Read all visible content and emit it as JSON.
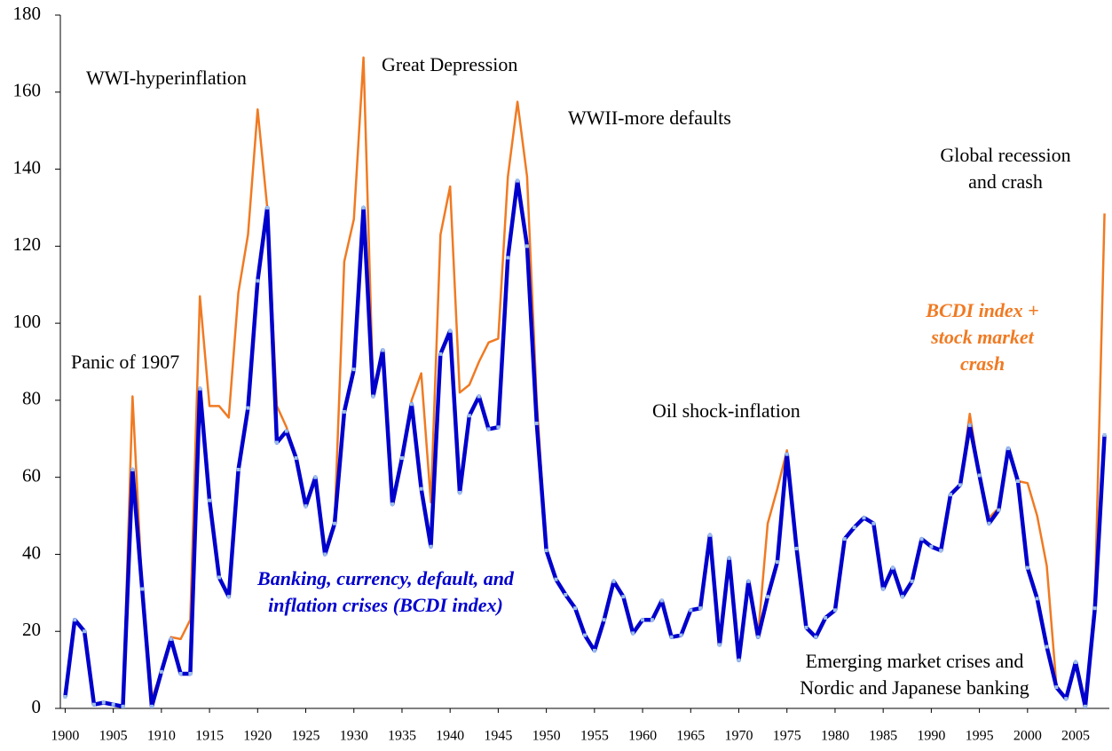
{
  "chart_data": {
    "type": "line",
    "x": [
      1900,
      1901,
      1902,
      1903,
      1904,
      1905,
      1906,
      1907,
      1908,
      1909,
      1910,
      1911,
      1912,
      1913,
      1914,
      1915,
      1916,
      1917,
      1918,
      1919,
      1920,
      1921,
      1922,
      1923,
      1924,
      1925,
      1926,
      1927,
      1928,
      1929,
      1930,
      1931,
      1932,
      1933,
      1934,
      1935,
      1936,
      1937,
      1938,
      1939,
      1940,
      1941,
      1942,
      1943,
      1944,
      1945,
      1946,
      1947,
      1948,
      1949,
      1950,
      1951,
      1952,
      1953,
      1954,
      1955,
      1956,
      1957,
      1958,
      1959,
      1960,
      1961,
      1962,
      1963,
      1964,
      1965,
      1966,
      1967,
      1968,
      1969,
      1970,
      1971,
      1972,
      1973,
      1974,
      1975,
      1976,
      1977,
      1978,
      1979,
      1980,
      1981,
      1982,
      1983,
      1984,
      1985,
      1986,
      1987,
      1988,
      1989,
      1990,
      1991,
      1992,
      1993,
      1994,
      1995,
      1996,
      1997,
      1998,
      1999,
      2000,
      2001,
      2002,
      2003,
      2004,
      2005,
      2006,
      2007,
      2008
    ],
    "series": [
      {
        "name": "BCDI index + stock market crash",
        "color": "#f07a22",
        "values": [
          3,
          23,
          20,
          1,
          1.5,
          1,
          0.5,
          81,
          31,
          2.5,
          9.5,
          18.5,
          18,
          23,
          107,
          78.5,
          78.5,
          75.5,
          108,
          123,
          155.5,
          130,
          78.5,
          73,
          65,
          52.5,
          60,
          41,
          48.5,
          116,
          127,
          169,
          83,
          93,
          54,
          65,
          80,
          87,
          53.5,
          123,
          135.5,
          82,
          84,
          90,
          95,
          96,
          138,
          157.5,
          138,
          80,
          41,
          33.5,
          29.5,
          26,
          19,
          15,
          23,
          33,
          29,
          19.5,
          23,
          23,
          28,
          18.5,
          19,
          25.5,
          26,
          45,
          16.5,
          39,
          12.5,
          33,
          19,
          48,
          57,
          67,
          41.5,
          21,
          18.5,
          23.5,
          25.5,
          44,
          47,
          49.5,
          48,
          31,
          36.5,
          29,
          33,
          44,
          42,
          41,
          55.5,
          58,
          76.5,
          60.5,
          49.5,
          52,
          67.5,
          59,
          58.5,
          50,
          37,
          6,
          2.5,
          12,
          1,
          28,
          128.5
        ]
      },
      {
        "name": "Banking, currency, default, and inflation crises (BCDI index)",
        "color": "#0000cc",
        "values": [
          3,
          23,
          20,
          1,
          1.5,
          1,
          0.5,
          62,
          31,
          0.5,
          9.5,
          18,
          9,
          9,
          83,
          54,
          34,
          29,
          62,
          78,
          111,
          130,
          69,
          72,
          65,
          52.5,
          60,
          40,
          48,
          77,
          88,
          130,
          81,
          93,
          53,
          65,
          79,
          57,
          42,
          92,
          98,
          56,
          76,
          81,
          72.5,
          73,
          117,
          137,
          120,
          74,
          41,
          33.5,
          29.5,
          26,
          19,
          15,
          23,
          33,
          29,
          19.5,
          23,
          23,
          28,
          18.5,
          19,
          25.5,
          26,
          45,
          16.5,
          39,
          12.5,
          33,
          18.5,
          29,
          38,
          66,
          41.5,
          21,
          18.5,
          23.5,
          25.5,
          44,
          47,
          49.5,
          48,
          31,
          36.5,
          29,
          33,
          44,
          42,
          41,
          55.5,
          58,
          73.5,
          60.5,
          48,
          51.5,
          67.5,
          59,
          36.5,
          28.5,
          16,
          5.5,
          2.5,
          12,
          0.5,
          26,
          71
        ]
      }
    ],
    "xlim": [
      1899.5,
      2008.5
    ],
    "xticks": [
      1900,
      1905,
      1910,
      1915,
      1920,
      1925,
      1930,
      1935,
      1940,
      1945,
      1950,
      1955,
      1960,
      1965,
      1970,
      1975,
      1980,
      1985,
      1990,
      1995,
      2000,
      2005
    ],
    "ylim": [
      0,
      180
    ],
    "yticks": [
      0,
      20,
      40,
      60,
      80,
      100,
      120,
      140,
      160,
      180
    ],
    "grid": false,
    "annotations": [
      "WWI-hyperinflation",
      "Great Depression",
      "WWII-more defaults",
      "Global recession and crash",
      "Panic of 1907",
      "Oil shock-inflation",
      "Emerging market crises and Nordic and Japanese banking"
    ]
  }
}
